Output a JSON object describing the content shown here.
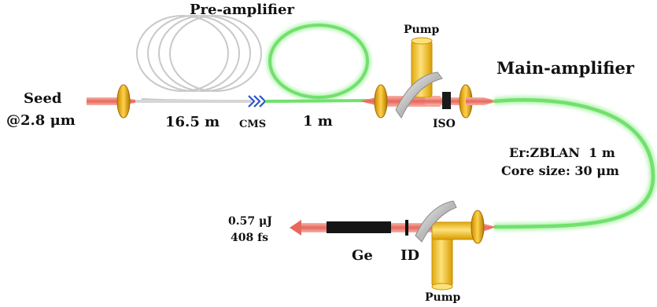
{
  "labels": {
    "pre_amplifier": "Pre-amplifier",
    "main_amplifier": "Main-amplifier",
    "seed_line1": "Seed",
    "seed_line2": "@2.8 μm",
    "passive_length": "16.5 m",
    "cms": "CMS",
    "gain_length": "1 m",
    "pump_top": "Pump",
    "iso": "ISO",
    "fiber_line1": "Er:ZBLAN  1 m",
    "fiber_line2": "Core size: 30 μm",
    "output_line1": "0.57 μJ",
    "output_line2": "408 fs",
    "ge": "Ge",
    "id": "ID",
    "pump_bottom": "Pump"
  },
  "colors": {
    "gain_fiber": "#7be87b",
    "beam": "#f08a80",
    "lens": "#e8b020",
    "pump": "#f1cc3a",
    "passive_fiber": "#c8c8c8",
    "cms": "#2a55c8",
    "element_dark": "#111111"
  }
}
